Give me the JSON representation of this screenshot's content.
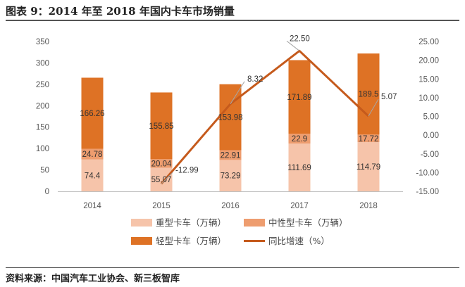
{
  "header": {
    "title": "图表 9：2014 年至 2018 年国内卡车市场销量"
  },
  "footer": {
    "source": "资料来源：中国汽车工业协会、新三板智库"
  },
  "colors": {
    "heavy": "#f6c4aa",
    "medium": "#ee9d6f",
    "light": "#de7225",
    "line": "#c55a1c"
  },
  "chart_data": {
    "type": "bar",
    "categories": [
      "2014",
      "2015",
      "2016",
      "2017",
      "2018"
    ],
    "series": [
      {
        "name": "重型卡车（万辆）",
        "values": [
          74.4,
          55.07,
          73.29,
          111.69,
          114.79
        ],
        "labels": [
          "74.4",
          "55.07",
          "73.29",
          "111.69",
          "114.79"
        ]
      },
      {
        "name": "中性型卡车（万辆）",
        "values": [
          24.78,
          20.04,
          22.91,
          22.9,
          17.72
        ],
        "labels": [
          "24.78",
          "20.04",
          "22.91",
          "22.9",
          "17.72"
        ]
      },
      {
        "name": "轻型卡车（万辆）",
        "values": [
          166.26,
          155.85,
          153.98,
          171.89,
          189.5
        ],
        "labels": [
          "166.26",
          "155.85",
          "153.98",
          "171.89",
          "189.5"
        ]
      },
      {
        "name": "同比增速（%）",
        "type": "line",
        "axis": "right",
        "x": [
          "2015",
          "2016",
          "2017",
          "2018"
        ],
        "values": [
          -12.99,
          8.32,
          22.5,
          5.07
        ],
        "labels": [
          "-12.99",
          "8.32",
          "22.50",
          "5.07"
        ]
      }
    ],
    "ylim": [
      0,
      350
    ],
    "yticks": [
      "0",
      "50",
      "100",
      "150",
      "200",
      "250",
      "300",
      "350"
    ],
    "y2lim": [
      -15,
      25
    ],
    "y2ticks": [
      "-15.00",
      "-10.00",
      "-5.00",
      "0.00",
      "5.00",
      "10.00",
      "15.00",
      "20.00",
      "25.00"
    ],
    "legend_position": "bottom",
    "grid": false
  }
}
